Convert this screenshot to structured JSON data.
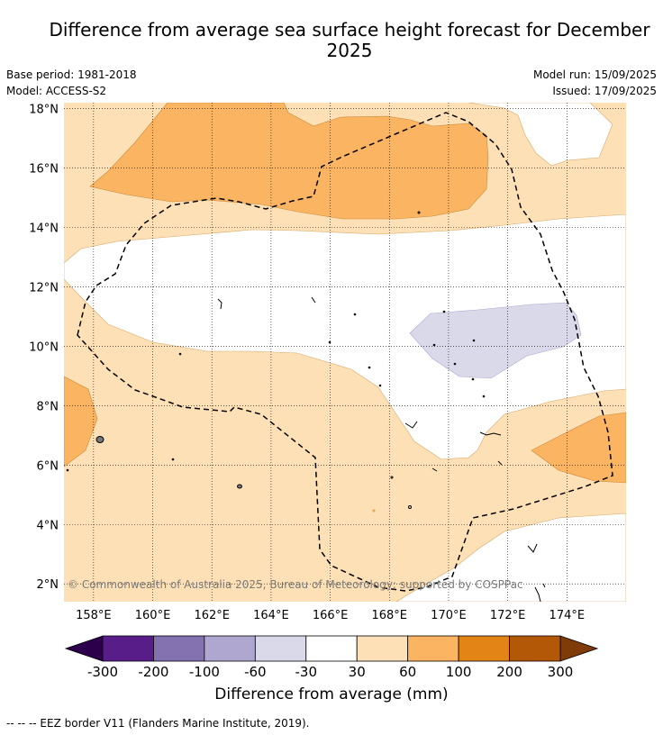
{
  "title": "Difference from average sea surface height forecast for December 2025",
  "info": {
    "base_period": "Base period: 1981-2018",
    "model": "Model: ACCESS-S2",
    "model_run": "Model run: 15/09/2025",
    "issued": "Issued: 17/09/2025"
  },
  "map": {
    "copyright": "© Commonwealth of Australia 2025, Bureau of Meteorology; supported by COSPPac",
    "lon_ticks": [
      "158°E",
      "160°E",
      "162°E",
      "164°E",
      "166°E",
      "168°E",
      "170°E",
      "172°E",
      "174°E"
    ],
    "lon_values": [
      158,
      160,
      162,
      164,
      166,
      168,
      170,
      172,
      174
    ],
    "lat_ticks": [
      "2°N",
      "4°N",
      "6°N",
      "8°N",
      "10°N",
      "12°N",
      "14°N",
      "16°N",
      "18°N"
    ],
    "lat_values": [
      2,
      4,
      6,
      8,
      10,
      12,
      14,
      16,
      18
    ],
    "lon_range": [
      157.0,
      176.0
    ],
    "lat_range": [
      1.4,
      18.2
    ],
    "eez_legend": "--  --  -- EEZ border V11 (Flanders Marine Institute, 2019)."
  },
  "colorbar": {
    "label": "Difference from average (mm)",
    "ticks": [
      "-300",
      "-200",
      "-100",
      "-60",
      "-30",
      "30",
      "60",
      "100",
      "200",
      "300"
    ],
    "colors": [
      "#591d8a",
      "#8471b0",
      "#b0a7d1",
      "#d9d9ea",
      "#ffffff",
      "#fde0b5",
      "#fbb562",
      "#e28416",
      "#b35807"
    ],
    "extend_low_color": "#2d004b",
    "extend_high_color": "#7f3b08"
  }
}
